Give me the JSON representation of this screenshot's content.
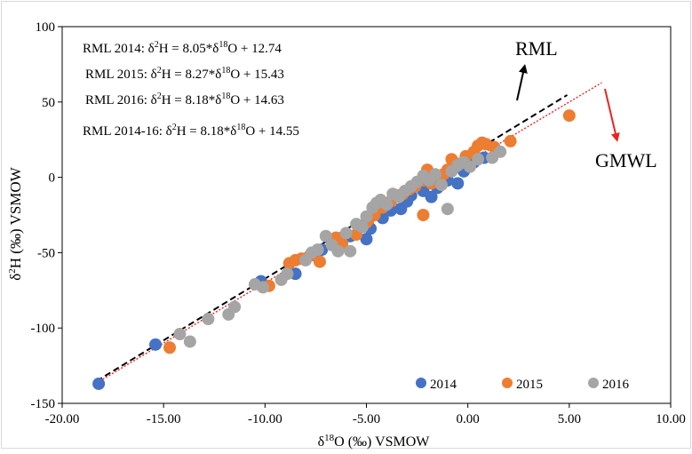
{
  "chart_data": {
    "type": "scatter",
    "xlabel": "δ18O (‰) VSMOW",
    "xlabel_parts": {
      "pre": "δ",
      "sup": "18",
      "post": "O (‰) VSMOW"
    },
    "ylabel": "δ2H (‰) VSMOW",
    "ylabel_parts": {
      "pre": "δ",
      "sup": "2",
      "post": "H (‰) VSMOW"
    },
    "xlim": [
      -20,
      10
    ],
    "ylim": [
      -150,
      100
    ],
    "x_ticks": [
      -20,
      -15,
      -10,
      -5,
      0,
      5,
      10
    ],
    "x_tick_labels": [
      "-20.00",
      "-15.00",
      "-10.00",
      "-5.00",
      "0.00",
      "5.00",
      "10.00"
    ],
    "y_ticks": [
      -150,
      -100,
      -50,
      0,
      50,
      100
    ],
    "y_tick_labels": [
      "-150",
      "-100",
      "-50",
      "0",
      "50",
      "100"
    ],
    "grid": false,
    "legend_position": "bottom-right",
    "equations": [
      {
        "label": "RML 2014:",
        "slope": "8.05",
        "intercept": "12.74"
      },
      {
        "label": "RML 2015:",
        "slope": "8.27",
        "intercept": "15.43"
      },
      {
        "label": "RML 2016:",
        "slope": "8.18",
        "intercept": "14.63"
      },
      {
        "label": "RML 2014-16:",
        "slope": "8.18",
        "intercept": "14.55"
      }
    ],
    "lines": [
      {
        "name": "RML",
        "slope": 8.18,
        "intercept": 14.55,
        "x_range": [
          -18.3,
          4.9
        ],
        "color": "#000000",
        "style": "dashed"
      },
      {
        "name": "GMWL",
        "slope": 8,
        "intercept": 10,
        "x_range": [
          -18.3,
          6.6
        ],
        "color": "#e8251f",
        "style": "dotted"
      }
    ],
    "annotations": [
      {
        "text": "RML",
        "color": "#000000"
      },
      {
        "text": "GMWL",
        "color": "#e8251f"
      }
    ],
    "series": [
      {
        "name": "2014",
        "color": "#4472c4",
        "points": [
          [
            -18.2,
            -137
          ],
          [
            -15.4,
            -111
          ],
          [
            -10.2,
            -69
          ],
          [
            -8.5,
            -64
          ],
          [
            -7.5,
            -52
          ],
          [
            -7.2,
            -48
          ],
          [
            -5.8,
            -39
          ],
          [
            -5.0,
            -41
          ],
          [
            -4.8,
            -34
          ],
          [
            -4.2,
            -27
          ],
          [
            -3.8,
            -22
          ],
          [
            -3.3,
            -21
          ],
          [
            -3.0,
            -16
          ],
          [
            -2.8,
            -12
          ],
          [
            -2.2,
            -9
          ],
          [
            -1.8,
            -13
          ],
          [
            -1.5,
            -7
          ],
          [
            -1.0,
            -2
          ],
          [
            -0.5,
            -4
          ],
          [
            -0.2,
            4
          ],
          [
            0.3,
            10
          ],
          [
            0.8,
            13
          ]
        ]
      },
      {
        "name": "2015",
        "color": "#ed7d31",
        "points": [
          [
            -14.7,
            -113
          ],
          [
            -9.8,
            -72
          ],
          [
            -8.8,
            -57
          ],
          [
            -8.5,
            -55
          ],
          [
            -8.2,
            -54
          ],
          [
            -7.8,
            -52
          ],
          [
            -7.3,
            -56
          ],
          [
            -6.5,
            -40
          ],
          [
            -6.2,
            -44
          ],
          [
            -5.5,
            -38
          ],
          [
            -5.0,
            -30
          ],
          [
            -4.9,
            -28
          ],
          [
            -4.6,
            -25
          ],
          [
            -4.2,
            -20
          ],
          [
            -3.8,
            -16
          ],
          [
            -3.5,
            -12
          ],
          [
            -3.2,
            -11
          ],
          [
            -2.9,
            -8
          ],
          [
            -2.6,
            -6
          ],
          [
            -2.2,
            -2
          ],
          [
            -2.0,
            5
          ],
          [
            -1.8,
            -4
          ],
          [
            -1.6,
            0
          ],
          [
            -1.4,
            -3
          ],
          [
            -1.2,
            2
          ],
          [
            -1.0,
            5
          ],
          [
            -0.8,
            12
          ],
          [
            -0.6,
            7
          ],
          [
            -0.4,
            9
          ],
          [
            -0.1,
            14
          ],
          [
            0.3,
            17
          ],
          [
            0.5,
            21
          ],
          [
            0.7,
            23
          ],
          [
            0.9,
            22
          ],
          [
            1.3,
            20
          ],
          [
            2.1,
            24
          ],
          [
            -2.2,
            -25
          ],
          [
            5.0,
            41
          ]
        ]
      },
      {
        "name": "2016",
        "color": "#a5a5a5",
        "points": [
          [
            -14.2,
            -104
          ],
          [
            -13.7,
            -109
          ],
          [
            -12.8,
            -94
          ],
          [
            -11.8,
            -91
          ],
          [
            -11.5,
            -86
          ],
          [
            -10.5,
            -71
          ],
          [
            -10.1,
            -73
          ],
          [
            -9.2,
            -68
          ],
          [
            -8.9,
            -64
          ],
          [
            -8.0,
            -55
          ],
          [
            -7.7,
            -50
          ],
          [
            -7.4,
            -48
          ],
          [
            -7.0,
            -39
          ],
          [
            -6.7,
            -45
          ],
          [
            -6.4,
            -49
          ],
          [
            -6.0,
            -37
          ],
          [
            -5.8,
            -49
          ],
          [
            -5.5,
            -31
          ],
          [
            -5.2,
            -33
          ],
          [
            -5.0,
            -26
          ],
          [
            -4.7,
            -20
          ],
          [
            -4.5,
            -17
          ],
          [
            -4.3,
            -15
          ],
          [
            -4.0,
            -18
          ],
          [
            -3.7,
            -11
          ],
          [
            -3.4,
            -13
          ],
          [
            -3.1,
            -9
          ],
          [
            -2.8,
            -6
          ],
          [
            -2.5,
            -3
          ],
          [
            -2.2,
            1
          ],
          [
            -1.9,
            -2
          ],
          [
            -1.6,
            2
          ],
          [
            -1.3,
            -5
          ],
          [
            -1.0,
            -21
          ],
          [
            -0.8,
            4
          ],
          [
            -0.5,
            8
          ],
          [
            -0.2,
            10
          ],
          [
            0.1,
            7
          ],
          [
            0.5,
            12
          ],
          [
            1.2,
            13
          ],
          [
            1.6,
            17
          ]
        ]
      }
    ]
  }
}
